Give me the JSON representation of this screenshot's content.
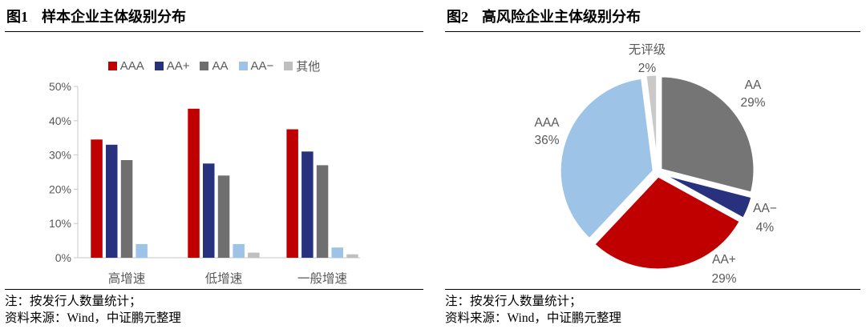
{
  "panels": [
    {
      "title_prefix": "图1",
      "title": "样本企业主体级别分布",
      "note1": "注：按发行人数量统计；",
      "note2": "资料来源：Wind，中证鹏元整理"
    },
    {
      "title_prefix": "图2",
      "title": "高风险企业主体级别分布",
      "note1": "注：按发行人数量统计；",
      "note2": "资料来源：Wind，中证鹏元整理"
    }
  ],
  "chart_data": [
    {
      "type": "bar",
      "title": "图1 样本企业主体级别分布",
      "categories": [
        "高增速",
        "低增速",
        "一般增速"
      ],
      "series": [
        {
          "name": "AAA",
          "color": "#C00000",
          "values": [
            34.5,
            43.5,
            37.5
          ]
        },
        {
          "name": "AA+",
          "color": "#27317E",
          "values": [
            33,
            27.5,
            31
          ]
        },
        {
          "name": "AA",
          "color": "#6F6F6F",
          "values": [
            28.5,
            24,
            27
          ]
        },
        {
          "name": "AA−",
          "color": "#9DC3E6",
          "values": [
            4,
            4,
            3
          ]
        },
        {
          "name": "其他",
          "color": "#BFBFBF",
          "values": [
            0,
            1.5,
            1
          ]
        }
      ],
      "ylim": [
        0,
        50
      ],
      "ytick_step": 10,
      "ytick_suffix": "%",
      "grid": false,
      "legend_position": "top",
      "axis_color": "#C8C8C8",
      "baseline_color": "#D9D9D9",
      "label_color": "#595959"
    },
    {
      "type": "pie",
      "title": "图2 高风险企业主体级别分布",
      "slices": [
        {
          "label": "无评级",
          "value": 2,
          "color": "#C9C9C9"
        },
        {
          "label": "AA",
          "value": 29,
          "color": "#757575"
        },
        {
          "label": "AA−",
          "value": 4,
          "color": "#27317E"
        },
        {
          "label": "AA+",
          "value": 29,
          "color": "#C00000"
        },
        {
          "label": "AAA",
          "value": 36,
          "color": "#9DC3E6"
        }
      ],
      "start_angle_deg": -7.2,
      "direction": "clockwise",
      "pct_suffix": "%",
      "label_color": "#595959"
    }
  ]
}
